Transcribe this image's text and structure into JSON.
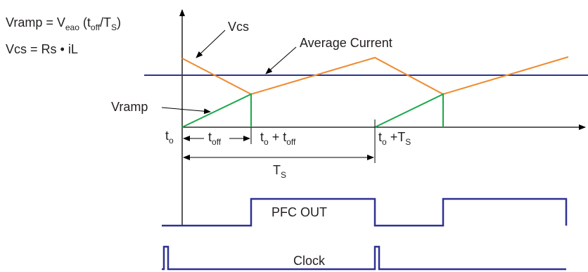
{
  "equations": {
    "vramp": {
      "lhs": "Vramp = V",
      "sub1": "eao",
      "mid": " (t",
      "sub2": "off",
      "mid2": "/T",
      "sub3": "S",
      "end": ")"
    },
    "vcs": "Vcs = Rs • iL"
  },
  "labels": {
    "vcs": "Vcs",
    "average_current": "Average Current",
    "vramp": "Vramp"
  },
  "time_labels": {
    "t0": {
      "main": "t",
      "sub": "o"
    },
    "toff": {
      "main": "t",
      "sub": "off"
    },
    "t0_plus_toff": {
      "main": "t",
      "sub": "o",
      "op": " + t",
      "sub2": "off"
    },
    "t0_plus_ts": {
      "main": "t",
      "sub": "o",
      "op": " +T",
      "sub2": "S"
    },
    "ts": {
      "main": "T",
      "sub": "S"
    }
  },
  "signals": {
    "pfc_out": "PFC OUT",
    "clock": "Clock"
  },
  "colors": {
    "vcs_line": "#ef8a2e",
    "vramp_line": "#1aa84a",
    "average_line": "#2e3192",
    "signal_line": "#2e3192",
    "axis": "#000000"
  }
}
